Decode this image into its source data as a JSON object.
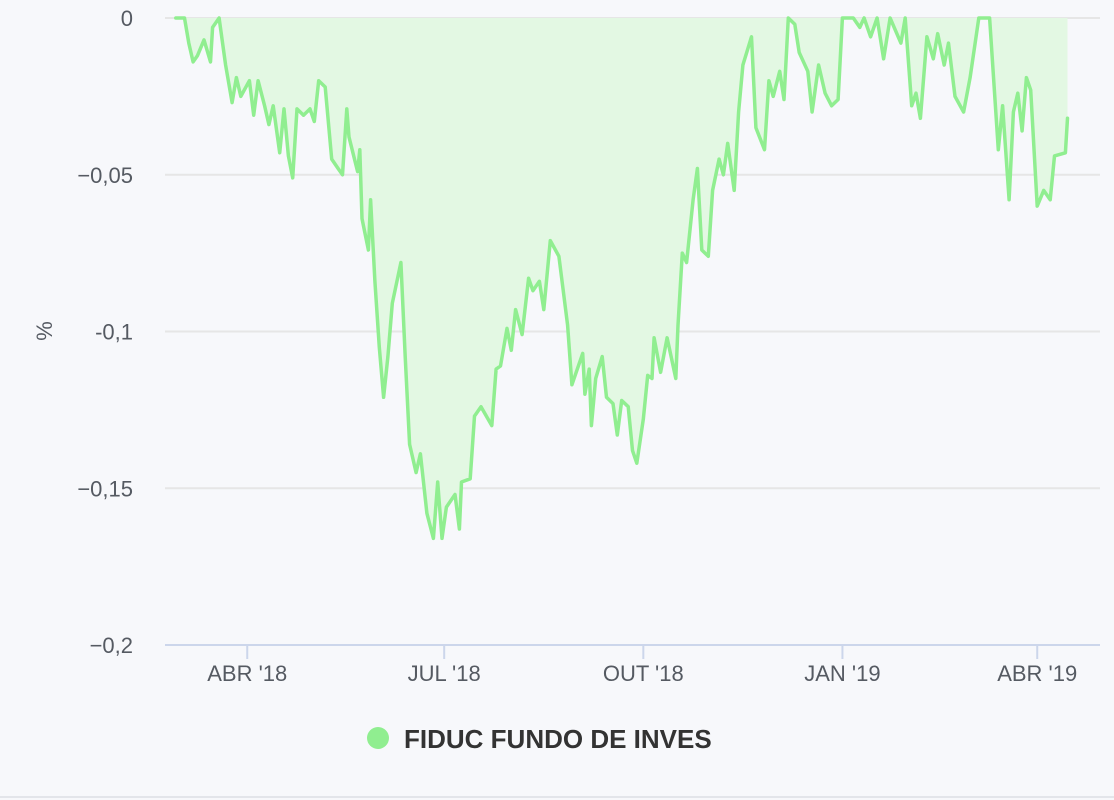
{
  "chart_data": {
    "type": "area",
    "ylabel": "%",
    "ylim": [
      -0.2,
      0
    ],
    "y_ticks": [
      {
        "value": 0,
        "label": "0"
      },
      {
        "value": -0.05,
        "label": "−0,05"
      },
      {
        "value": -0.1,
        "label": "-0,1"
      },
      {
        "value": -0.15,
        "label": "−0,15"
      },
      {
        "value": -0.2,
        "label": "−0,2"
      }
    ],
    "xlim": [
      "2018-02-22",
      "2019-04-30"
    ],
    "x_ticks": [
      {
        "date": "2018-04-01",
        "label": "ABR '18"
      },
      {
        "date": "2018-07-01",
        "label": "JUL '18"
      },
      {
        "date": "2018-10-01",
        "label": "OUT '18"
      },
      {
        "date": "2019-01-01",
        "label": "JAN '19"
      },
      {
        "date": "2019-04-01",
        "label": "ABR '19"
      }
    ],
    "grid": true,
    "legend_position": "bottom-center",
    "colors": {
      "line": "#90ee90",
      "fill": "#e3f8e3",
      "grid": "#e6e6e6",
      "axis": "#ccd6eb"
    },
    "series": [
      {
        "name": "FIDUC FUNDO DE INVES",
        "points": [
          [
            "2018-02-27",
            0
          ],
          [
            "2018-03-03",
            0
          ],
          [
            "2018-03-05",
            -0.008
          ],
          [
            "2018-03-07",
            -0.014
          ],
          [
            "2018-03-09",
            -0.012
          ],
          [
            "2018-03-12",
            -0.007
          ],
          [
            "2018-03-15",
            -0.014
          ],
          [
            "2018-03-16",
            -0.003
          ],
          [
            "2018-03-19",
            0
          ],
          [
            "2018-03-22",
            -0.015
          ],
          [
            "2018-03-25",
            -0.027
          ],
          [
            "2018-03-27",
            -0.019
          ],
          [
            "2018-03-29",
            -0.025
          ],
          [
            "2018-04-02",
            -0.02
          ],
          [
            "2018-04-04",
            -0.031
          ],
          [
            "2018-04-06",
            -0.02
          ],
          [
            "2018-04-09",
            -0.028
          ],
          [
            "2018-04-11",
            -0.034
          ],
          [
            "2018-04-13",
            -0.028
          ],
          [
            "2018-04-16",
            -0.043
          ],
          [
            "2018-04-18",
            -0.029
          ],
          [
            "2018-04-20",
            -0.044
          ],
          [
            "2018-04-22",
            -0.051
          ],
          [
            "2018-04-24",
            -0.029
          ],
          [
            "2018-04-27",
            -0.031
          ],
          [
            "2018-04-30",
            -0.029
          ],
          [
            "2018-05-02",
            -0.033
          ],
          [
            "2018-05-04",
            -0.02
          ],
          [
            "2018-05-07",
            -0.022
          ],
          [
            "2018-05-10",
            -0.045
          ],
          [
            "2018-05-13",
            -0.048
          ],
          [
            "2018-05-15",
            -0.05
          ],
          [
            "2018-05-17",
            -0.029
          ],
          [
            "2018-05-18",
            -0.038
          ],
          [
            "2018-05-22",
            -0.049
          ],
          [
            "2018-05-23",
            -0.042
          ],
          [
            "2018-05-24",
            -0.064
          ],
          [
            "2018-05-27",
            -0.074
          ],
          [
            "2018-05-28",
            -0.058
          ],
          [
            "2018-05-30",
            -0.084
          ],
          [
            "2018-06-01",
            -0.105
          ],
          [
            "2018-06-03",
            -0.121
          ],
          [
            "2018-06-05",
            -0.108
          ],
          [
            "2018-06-07",
            -0.091
          ],
          [
            "2018-06-11",
            -0.078
          ],
          [
            "2018-06-13",
            -0.108
          ],
          [
            "2018-06-15",
            -0.136
          ],
          [
            "2018-06-18",
            -0.145
          ],
          [
            "2018-06-20",
            -0.139
          ],
          [
            "2018-06-23",
            -0.158
          ],
          [
            "2018-06-26",
            -0.166
          ],
          [
            "2018-06-28",
            -0.148
          ],
          [
            "2018-06-30",
            -0.166
          ],
          [
            "2018-07-02",
            -0.156
          ],
          [
            "2018-07-06",
            -0.152
          ],
          [
            "2018-07-08",
            -0.163
          ],
          [
            "2018-07-09",
            -0.148
          ],
          [
            "2018-07-13",
            -0.147
          ],
          [
            "2018-07-15",
            -0.127
          ],
          [
            "2018-07-18",
            -0.124
          ],
          [
            "2018-07-23",
            -0.13
          ],
          [
            "2018-07-25",
            -0.112
          ],
          [
            "2018-07-27",
            -0.111
          ],
          [
            "2018-07-30",
            -0.099
          ],
          [
            "2018-08-01",
            -0.106
          ],
          [
            "2018-08-03",
            -0.093
          ],
          [
            "2018-08-06",
            -0.101
          ],
          [
            "2018-08-09",
            -0.083
          ],
          [
            "2018-08-11",
            -0.087
          ],
          [
            "2018-08-14",
            -0.084
          ],
          [
            "2018-08-16",
            -0.093
          ],
          [
            "2018-08-19",
            -0.071
          ],
          [
            "2018-08-23",
            -0.076
          ],
          [
            "2018-08-27",
            -0.098
          ],
          [
            "2018-08-29",
            -0.117
          ],
          [
            "2018-08-31",
            -0.113
          ],
          [
            "2018-09-03",
            -0.107
          ],
          [
            "2018-09-04",
            -0.12
          ],
          [
            "2018-09-06",
            -0.112
          ],
          [
            "2018-09-07",
            -0.13
          ],
          [
            "2018-09-09",
            -0.115
          ],
          [
            "2018-09-12",
            -0.108
          ],
          [
            "2018-09-14",
            -0.121
          ],
          [
            "2018-09-17",
            -0.123
          ],
          [
            "2018-09-19",
            -0.133
          ],
          [
            "2018-09-21",
            -0.122
          ],
          [
            "2018-09-24",
            -0.124
          ],
          [
            "2018-09-26",
            -0.138
          ],
          [
            "2018-09-28",
            -0.142
          ],
          [
            "2018-10-01",
            -0.128
          ],
          [
            "2018-10-03",
            -0.114
          ],
          [
            "2018-10-05",
            -0.115
          ],
          [
            "2018-10-06",
            -0.102
          ],
          [
            "2018-10-09",
            -0.113
          ],
          [
            "2018-10-12",
            -0.102
          ],
          [
            "2018-10-16",
            -0.115
          ],
          [
            "2018-10-17",
            -0.098
          ],
          [
            "2018-10-19",
            -0.075
          ],
          [
            "2018-10-21",
            -0.078
          ],
          [
            "2018-10-24",
            -0.058
          ],
          [
            "2018-10-26",
            -0.048
          ],
          [
            "2018-10-28",
            -0.074
          ],
          [
            "2018-10-31",
            -0.076
          ],
          [
            "2018-11-02",
            -0.055
          ],
          [
            "2018-11-05",
            -0.045
          ],
          [
            "2018-11-07",
            -0.05
          ],
          [
            "2018-11-09",
            -0.04
          ],
          [
            "2018-11-12",
            -0.055
          ],
          [
            "2018-11-14",
            -0.03
          ],
          [
            "2018-11-16",
            -0.015
          ],
          [
            "2018-11-20",
            -0.006
          ],
          [
            "2018-11-22",
            -0.035
          ],
          [
            "2018-11-26",
            -0.042
          ],
          [
            "2018-11-28",
            -0.02
          ],
          [
            "2018-11-30",
            -0.025
          ],
          [
            "2018-12-03",
            -0.017
          ],
          [
            "2018-12-05",
            -0.026
          ],
          [
            "2018-12-07",
            0
          ],
          [
            "2018-12-10",
            -0.002
          ],
          [
            "2018-12-12",
            -0.011
          ],
          [
            "2018-12-16",
            -0.017
          ],
          [
            "2018-12-18",
            -0.03
          ],
          [
            "2018-12-21",
            -0.015
          ],
          [
            "2018-12-24",
            -0.024
          ],
          [
            "2018-12-27",
            -0.028
          ],
          [
            "2018-12-30",
            -0.026
          ],
          [
            "2019-01-01",
            0
          ],
          [
            "2019-01-06",
            0
          ],
          [
            "2019-01-09",
            -0.003
          ],
          [
            "2019-01-11",
            0
          ],
          [
            "2019-01-14",
            -0.006
          ],
          [
            "2019-01-17",
            0
          ],
          [
            "2019-01-20",
            -0.013
          ],
          [
            "2019-01-23",
            0
          ],
          [
            "2019-01-28",
            -0.008
          ],
          [
            "2019-01-30",
            0
          ],
          [
            "2019-02-02",
            -0.028
          ],
          [
            "2019-02-04",
            -0.024
          ],
          [
            "2019-02-06",
            -0.032
          ],
          [
            "2019-02-09",
            -0.006
          ],
          [
            "2019-02-12",
            -0.013
          ],
          [
            "2019-02-14",
            -0.005
          ],
          [
            "2019-02-17",
            -0.015
          ],
          [
            "2019-02-19",
            -0.008
          ],
          [
            "2019-02-22",
            -0.025
          ],
          [
            "2019-02-26",
            -0.03
          ],
          [
            "2019-03-01",
            -0.019
          ],
          [
            "2019-03-05",
            0
          ],
          [
            "2019-03-10",
            0
          ],
          [
            "2019-03-14",
            -0.042
          ],
          [
            "2019-03-16",
            -0.028
          ],
          [
            "2019-03-19",
            -0.058
          ],
          [
            "2019-03-21",
            -0.03
          ],
          [
            "2019-03-23",
            -0.024
          ],
          [
            "2019-03-25",
            -0.036
          ],
          [
            "2019-03-27",
            -0.019
          ],
          [
            "2019-03-29",
            -0.023
          ],
          [
            "2019-04-01",
            -0.06
          ],
          [
            "2019-04-04",
            -0.055
          ],
          [
            "2019-04-07",
            -0.058
          ],
          [
            "2019-04-09",
            -0.044
          ],
          [
            "2019-04-14",
            -0.043
          ],
          [
            "2019-04-15",
            -0.032
          ]
        ]
      }
    ]
  }
}
